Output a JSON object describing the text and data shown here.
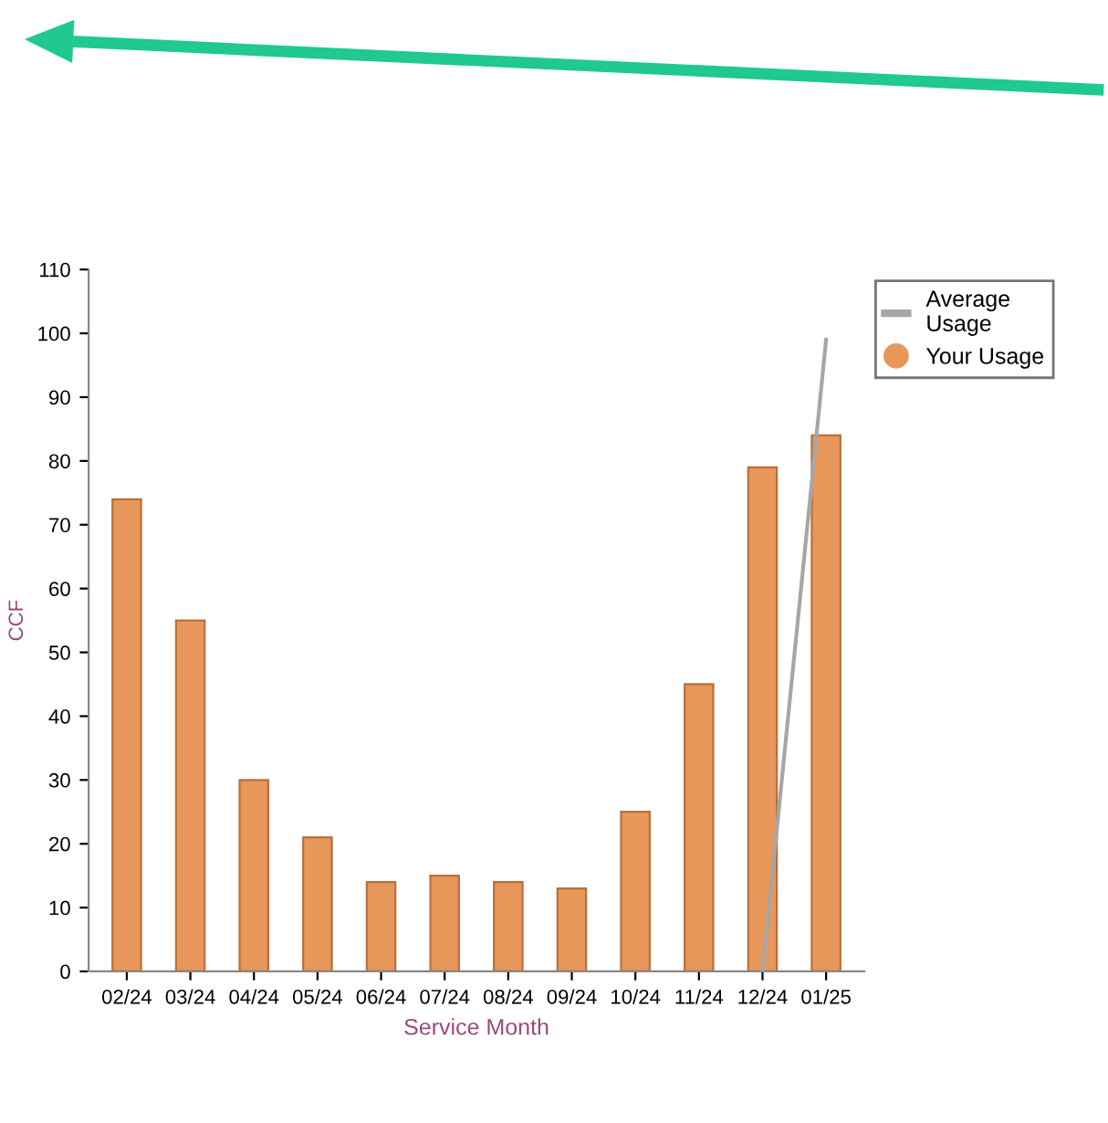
{
  "chart_data": {
    "type": "bar",
    "xlabel": "Service Month",
    "ylabel": "CCF",
    "categories": [
      "02/24",
      "03/24",
      "04/24",
      "05/24",
      "06/24",
      "07/24",
      "08/24",
      "09/24",
      "10/24",
      "11/24",
      "12/24",
      "01/25"
    ],
    "series": [
      {
        "name": "Average Usage",
        "type": "line",
        "color": "#a6a6a6",
        "values": [
          null,
          null,
          null,
          null,
          null,
          null,
          null,
          null,
          null,
          null,
          0,
          99
        ]
      },
      {
        "name": "Your Usage",
        "color": "#e8975a",
        "values": [
          74,
          55,
          30,
          21,
          14,
          15,
          14,
          13,
          25,
          45,
          79,
          84
        ]
      }
    ],
    "ylim": [
      0,
      110
    ],
    "yticks": [
      0,
      10,
      20,
      30,
      40,
      50,
      60,
      70,
      80,
      90,
      100,
      110
    ],
    "grid": false,
    "legend": "top right"
  }
}
